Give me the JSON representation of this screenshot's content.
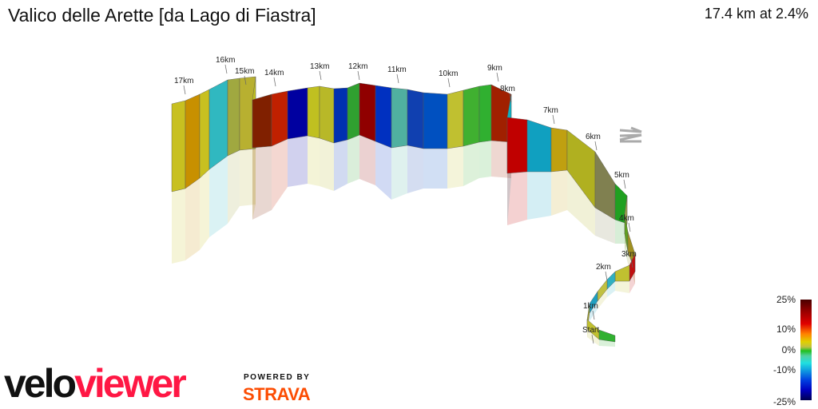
{
  "header": {
    "title": "Valico delle Arette [da Lago di Fiastra]",
    "stats": "17.4 km at 2.4%"
  },
  "profile": {
    "km_labels": [
      "Start",
      "1km",
      "2km",
      "3km",
      "4km",
      "5km",
      "6km",
      "7km",
      "8km",
      "9km",
      "10km",
      "11km",
      "12km",
      "13km",
      "14km",
      "15km",
      "16km",
      "17km"
    ],
    "north_arrow_icon": "north-arrow-icon"
  },
  "legend": {
    "labels": [
      "25%",
      "10%",
      "0%",
      "-10%",
      "-25%"
    ]
  },
  "branding": {
    "logo_velo": "velo",
    "logo_viewer": "viewer",
    "powered_by": "POWERED BY",
    "strava": "STRAVA",
    "velo_color": "#111111",
    "viewer_color": "#ff1744",
    "strava_color": "#fc4c02"
  }
}
